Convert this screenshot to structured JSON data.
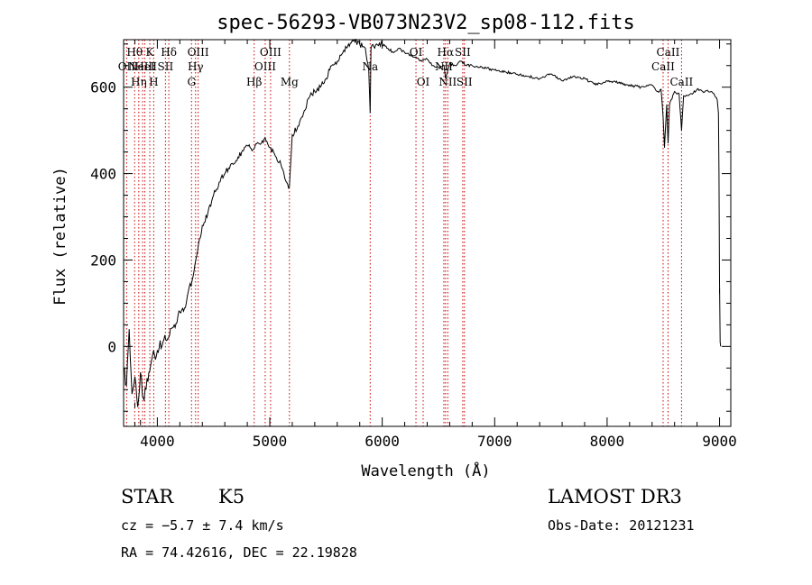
{
  "chart_data": {
    "type": "line",
    "title": "spec-56293-VB073N23V2_sp08-112.fits",
    "xlabel": "Wavelength (Å)",
    "ylabel": "Flux (relative)",
    "xlim": [
      3700,
      9100
    ],
    "ylim": [
      -185,
      710
    ],
    "xticks": [
      4000,
      5000,
      6000,
      7000,
      8000,
      9000
    ],
    "yticks": [
      0,
      200,
      400,
      600
    ],
    "grid": false,
    "line_color": "#000000",
    "marker_color": "#cc0000",
    "series": [
      {
        "x": [
          3700,
          3725,
          3750,
          3775,
          3800,
          3825,
          3850,
          3875,
          3900,
          3925,
          3950,
          3975,
          4000,
          4050,
          4100,
          4150,
          4200,
          4250,
          4300,
          4350,
          4400,
          4450,
          4500,
          4550,
          4600,
          4650,
          4700,
          4750,
          4800,
          4850,
          4900,
          4950,
          5000,
          5050,
          5100,
          5150,
          5175,
          5200,
          5250,
          5300,
          5350,
          5400,
          5450,
          5500,
          5550,
          5600,
          5650,
          5700,
          5750,
          5800,
          5850,
          5880,
          5893,
          5900,
          5950,
          6000,
          6050,
          6100,
          6150,
          6200,
          6250,
          6300,
          6350,
          6400,
          6450,
          6500,
          6550,
          6563,
          6600,
          6650,
          6700,
          6750,
          6800,
          6900,
          7000,
          7100,
          7200,
          7300,
          7400,
          7500,
          7600,
          7700,
          7800,
          7900,
          8000,
          8100,
          8200,
          8300,
          8400,
          8450,
          8480,
          8498,
          8510,
          8530,
          8542,
          8555,
          8600,
          8640,
          8662,
          8680,
          8750,
          8800,
          8850,
          8900,
          8950,
          8980,
          8990,
          8995,
          9000,
          9005,
          9010
        ],
        "values": [
          -50,
          -90,
          40,
          -110,
          -70,
          -140,
          -60,
          -120,
          -100,
          -60,
          -30,
          -20,
          -10,
          10,
          20,
          50,
          80,
          90,
          140,
          210,
          280,
          310,
          350,
          380,
          400,
          420,
          430,
          450,
          465,
          455,
          470,
          480,
          460,
          440,
          420,
          380,
          370,
          490,
          510,
          540,
          575,
          590,
          600,
          620,
          650,
          660,
          680,
          700,
          710,
          700,
          690,
          640,
          540,
          690,
          700,
          700,
          690,
          680,
          690,
          680,
          675,
          670,
          660,
          665,
          650,
          645,
          650,
          620,
          655,
          650,
          660,
          650,
          650,
          645,
          640,
          635,
          630,
          625,
          620,
          630,
          615,
          625,
          620,
          605,
          615,
          610,
          605,
          600,
          605,
          590,
          595,
          530,
          460,
          560,
          470,
          560,
          590,
          585,
          500,
          580,
          585,
          595,
          590,
          590,
          585,
          570,
          540,
          400,
          150,
          10,
          0
        ],
        "label_points": [
          {
            "x": 3700,
            "y": 125
          },
          {
            "x": 3800,
            "y": -130
          },
          {
            "x": 3850,
            "y": -170
          },
          {
            "x": 9000,
            "y": 135
          }
        ]
      }
    ],
    "lines": [
      {
        "x": 3727,
        "labels": [
          "OII"
        ],
        "tier": 1
      },
      {
        "x": 3798,
        "labels": [
          "Hθ"
        ],
        "tier": 0
      },
      {
        "x": 3835,
        "labels": [
          "Hη"
        ],
        "tier": 2
      },
      {
        "x": 3869,
        "labels": [
          "NeIII"
        ],
        "tier": 1
      },
      {
        "x": 3889,
        "labels": [
          "HeI"
        ],
        "tier": 1
      },
      {
        "x": 3933,
        "labels": [
          "K"
        ],
        "tier": 0
      },
      {
        "x": 3968,
        "labels": [
          "H"
        ],
        "tier": 2
      },
      {
        "x": 4072,
        "labels": [
          "SII"
        ],
        "tier": 1
      },
      {
        "x": 4102,
        "labels": [
          "Hδ"
        ],
        "tier": 0
      },
      {
        "x": 4304,
        "labels": [
          "G"
        ],
        "tier": 2
      },
      {
        "x": 4340,
        "labels": [
          "Hγ"
        ],
        "tier": 1
      },
      {
        "x": 4363,
        "labels": [
          "OIII"
        ],
        "tier": 0
      },
      {
        "x": 4861,
        "labels": [
          "Hβ"
        ],
        "tier": 2
      },
      {
        "x": 4959,
        "labels": [
          "OIII"
        ],
        "tier": 1
      },
      {
        "x": 5007,
        "labels": [
          "OIII"
        ],
        "tier": 0
      },
      {
        "x": 5175,
        "labels": [
          "Mg"
        ],
        "tier": 2
      },
      {
        "x": 5893,
        "labels": [
          "Na"
        ],
        "tier": 1
      },
      {
        "x": 6300,
        "labels": [
          "OI"
        ],
        "tier": 0
      },
      {
        "x": 6364,
        "labels": [
          "OI"
        ],
        "tier": 2
      },
      {
        "x": 6548,
        "labels": [
          "NII"
        ],
        "tier": 1
      },
      {
        "x": 6563,
        "labels": [
          "Hα"
        ],
        "tier": 0
      },
      {
        "x": 6583,
        "labels": [
          "NII"
        ],
        "tier": 2
      },
      {
        "x": 6716,
        "labels": [
          "SII"
        ],
        "tier": 0
      },
      {
        "x": 6731,
        "labels": [
          "SII"
        ],
        "tier": 2
      },
      {
        "x": 8498,
        "labels": [
          "CaII"
        ],
        "tier": 1
      },
      {
        "x": 8542,
        "labels": [
          "CaII"
        ],
        "tier": 0
      },
      {
        "x": 8662,
        "labels": [
          "CaII"
        ],
        "tier": 2
      }
    ]
  },
  "info": {
    "object_class": "STAR",
    "subclass": "K5",
    "survey": "LAMOST DR3",
    "cz": "cz = −5.7 ± 7.4 km/s",
    "obs_date": "Obs-Date: 20121231",
    "coords": "RA =  74.42616, DEC =  22.19828"
  }
}
